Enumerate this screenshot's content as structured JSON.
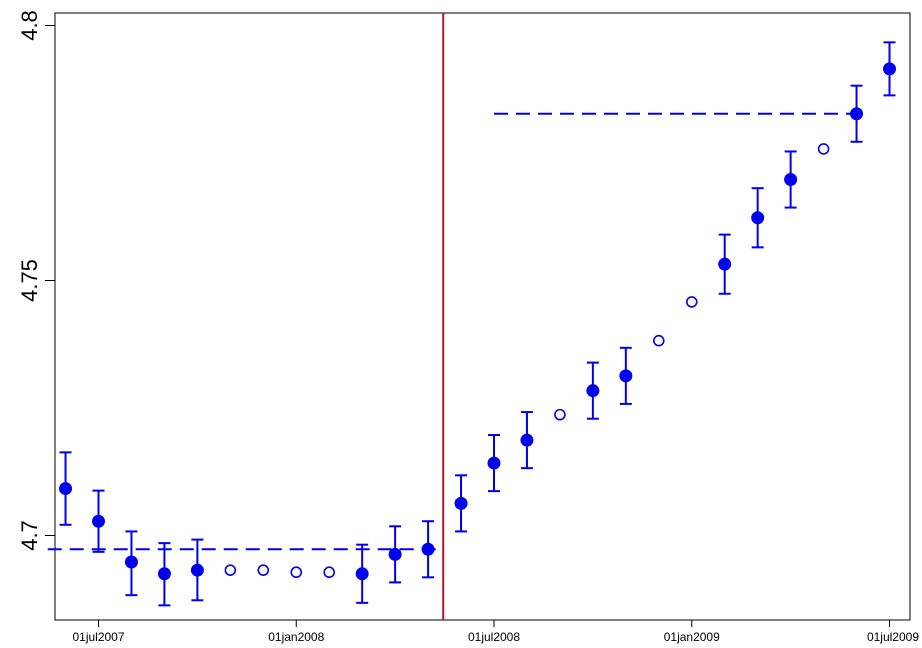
{
  "chart_data": {
    "type": "scatter",
    "title": "",
    "xlabel": "",
    "ylabel": "",
    "x_ticks": [
      "01jul2007",
      "01jan2008",
      "01jul2008",
      "01jan2009",
      "01jul2009"
    ],
    "y_ticks": [
      "4.7",
      "4.75",
      "4.8"
    ],
    "ylim": [
      4.683,
      4.802
    ],
    "grid": false,
    "legend": "none",
    "colors": {
      "points": "#0000ee",
      "event_line": "#b2182b",
      "frame": "#000000"
    },
    "event_line": {
      "x": "2008-05-15",
      "label": ""
    },
    "reference_lines": [
      {
        "x_start": "2007-05-15",
        "x_end": "2008-05-15",
        "y": 4.6973,
        "style": "dashed"
      },
      {
        "x_start": "2008-07-01",
        "x_end": "2009-06-01",
        "y": 4.7827,
        "style": "dashed"
      }
    ],
    "series": [
      {
        "marker": "filled-circle",
        "points": [
          {
            "x": "2007-06-01",
            "y": 4.7092,
            "lo": 4.7021,
            "hi": 4.7163
          },
          {
            "x": "2007-07-01",
            "y": 4.7028,
            "lo": 4.6968,
            "hi": 4.7088
          },
          {
            "x": "2007-08-01",
            "y": 4.6948,
            "lo": 4.6883,
            "hi": 4.7008
          },
          {
            "x": "2007-09-01",
            "y": 4.6925,
            "lo": 4.6863,
            "hi": 4.6985
          },
          {
            "x": "2007-10-01",
            "y": 4.6932,
            "lo": 4.6873,
            "hi": 4.6992
          },
          {
            "x": "2008-03-01",
            "y": 4.6925,
            "lo": 4.6868,
            "hi": 4.6982
          },
          {
            "x": "2008-04-01",
            "y": 4.6963,
            "lo": 4.6908,
            "hi": 4.7018
          },
          {
            "x": "2008-05-01",
            "y": 4.6973,
            "lo": 4.6918,
            "hi": 4.7028
          },
          {
            "x": "2008-06-01",
            "y": 4.7063,
            "lo": 4.7008,
            "hi": 4.7118
          },
          {
            "x": "2008-07-01",
            "y": 4.7142,
            "lo": 4.7087,
            "hi": 4.7197
          },
          {
            "x": "2008-08-01",
            "y": 4.7187,
            "lo": 4.7132,
            "hi": 4.7242
          },
          {
            "x": "2008-10-01",
            "y": 4.7284,
            "lo": 4.7229,
            "hi": 4.7339
          },
          {
            "x": "2008-11-01",
            "y": 4.7313,
            "lo": 4.7258,
            "hi": 4.7368
          },
          {
            "x": "2009-02-01",
            "y": 4.7532,
            "lo": 4.7474,
            "hi": 4.759
          },
          {
            "x": "2009-03-01",
            "y": 4.7623,
            "lo": 4.7565,
            "hi": 4.7681
          },
          {
            "x": "2009-04-01",
            "y": 4.7698,
            "lo": 4.7643,
            "hi": 4.7753
          },
          {
            "x": "2009-06-01",
            "y": 4.7827,
            "lo": 4.7772,
            "hi": 4.7882
          },
          {
            "x": "2009-07-01",
            "y": 4.7915,
            "lo": 4.7863,
            "hi": 4.7967
          }
        ]
      },
      {
        "marker": "open-circle",
        "points": [
          {
            "x": "2007-11-01",
            "y": 4.6932
          },
          {
            "x": "2007-12-01",
            "y": 4.6932
          },
          {
            "x": "2008-01-01",
            "y": 4.6928
          },
          {
            "x": "2008-02-01",
            "y": 4.6928
          },
          {
            "x": "2008-09-01",
            "y": 4.7237
          },
          {
            "x": "2008-12-01",
            "y": 4.7382
          },
          {
            "x": "2009-01-01",
            "y": 4.7458
          },
          {
            "x": "2009-05-01",
            "y": 4.7758
          }
        ]
      }
    ]
  }
}
